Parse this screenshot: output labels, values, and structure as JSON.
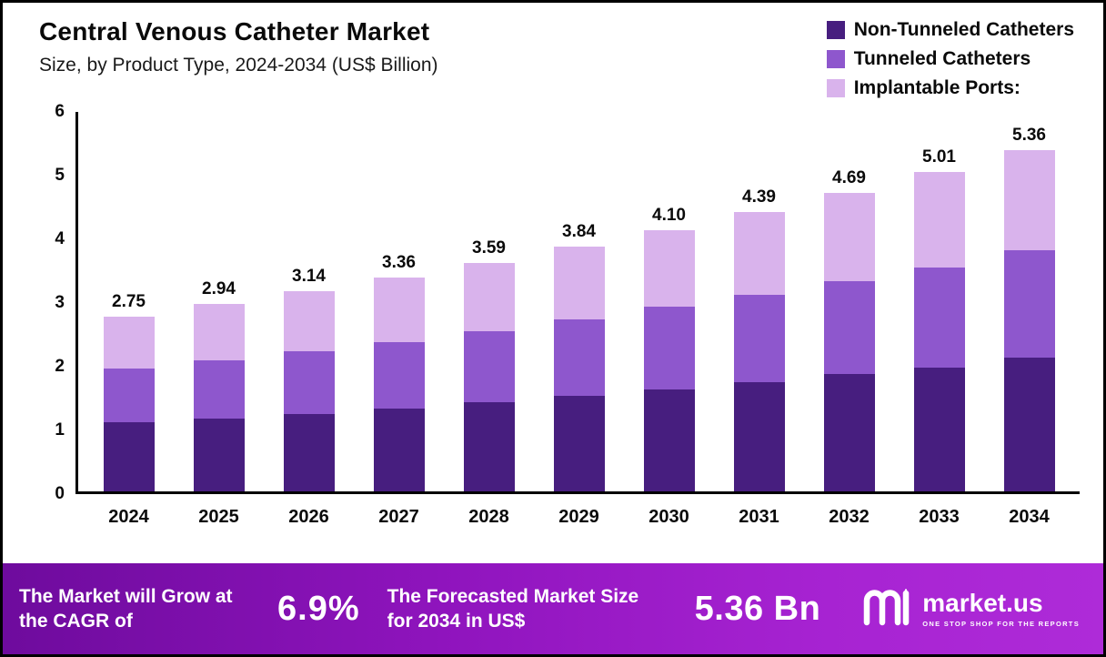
{
  "header": {
    "title": "Central Venous Catheter Market",
    "subtitle": "Size, by Product Type, 2024-2034 (US$ Billion)"
  },
  "legend": [
    {
      "label": "Non-Tunneled Catheters",
      "color": "#471e7f"
    },
    {
      "label": "Tunneled Catheters",
      "color": "#8e57cd"
    },
    {
      "label": "Implantable Ports:",
      "color": "#d9b3ec"
    }
  ],
  "chart_data": {
    "type": "bar",
    "stacked": true,
    "title": "Central Venous Catheter Market Size, by Product Type, 2024-2034 (US$ Billion)",
    "xlabel": "",
    "ylabel": "",
    "ylim": [
      0,
      6
    ],
    "yticks": [
      0,
      1,
      2,
      3,
      4,
      5,
      6
    ],
    "grid": false,
    "legend_position": "top-right",
    "categories": [
      "2024",
      "2025",
      "2026",
      "2027",
      "2028",
      "2029",
      "2030",
      "2031",
      "2032",
      "2033",
      "2034"
    ],
    "series": [
      {
        "name": "Non-Tunneled Catheters",
        "color": "#471e7f",
        "values": [
          1.08,
          1.15,
          1.22,
          1.3,
          1.4,
          1.5,
          1.6,
          1.72,
          1.84,
          1.95,
          2.1
        ]
      },
      {
        "name": "Tunneled Catheters",
        "color": "#8e57cd",
        "values": [
          0.85,
          0.91,
          0.98,
          1.05,
          1.12,
          1.2,
          1.3,
          1.36,
          1.46,
          1.57,
          1.68
        ]
      },
      {
        "name": "Implantable Ports",
        "color": "#d9b3ec",
        "values": [
          0.82,
          0.88,
          0.94,
          1.01,
          1.07,
          1.14,
          1.2,
          1.31,
          1.39,
          1.49,
          1.58
        ]
      }
    ],
    "totals": [
      2.75,
      2.94,
      3.14,
      3.36,
      3.59,
      3.84,
      4.1,
      4.39,
      4.69,
      5.01,
      5.36
    ],
    "total_labels": [
      "2.75",
      "2.94",
      "3.14",
      "3.36",
      "3.59",
      "3.84",
      "4.10",
      "4.39",
      "4.69",
      "5.01",
      "5.36"
    ]
  },
  "footer": {
    "cagr_label": "The Market will Grow at the CAGR of",
    "cagr_value": "6.9%",
    "forecast_label": "The Forecasted Market Size for 2034 in US$",
    "forecast_value": "5.36 Bn",
    "brand": {
      "name": "market.us",
      "tagline": "ONE STOP SHOP FOR THE REPORTS"
    }
  }
}
